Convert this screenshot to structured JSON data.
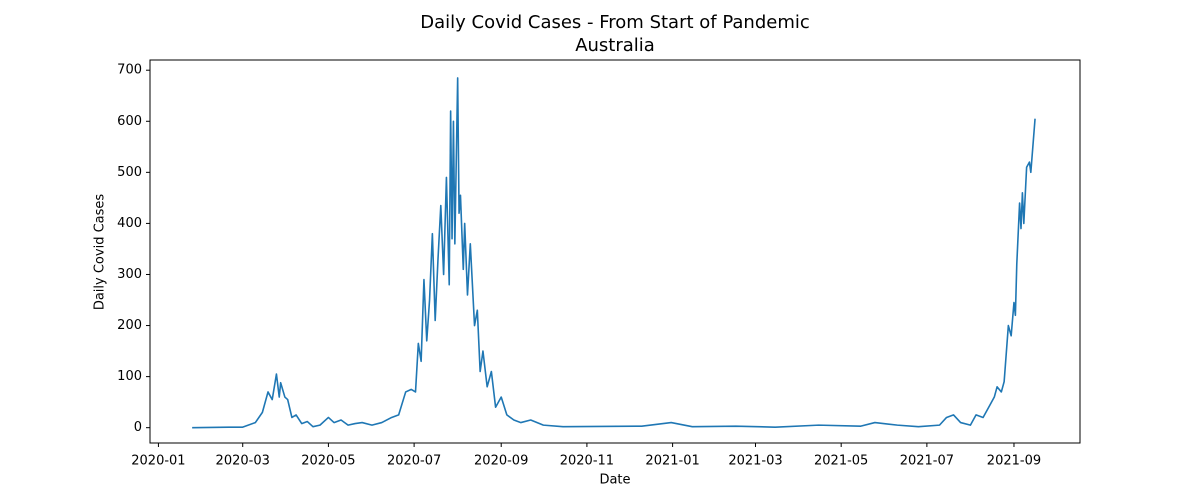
{
  "chart_data": {
    "type": "line",
    "title": "Daily Covid Cases - From Start of Pandemic",
    "subtitle": "Australia",
    "x_label": "Date",
    "y_label": "Daily Covid Cases",
    "grid": false,
    "x": [
      "2020-01-25",
      "2020-02-20",
      "2020-03-01",
      "2020-03-10",
      "2020-03-15",
      "2020-03-19",
      "2020-03-22",
      "2020-03-25",
      "2020-03-27",
      "2020-03-28",
      "2020-03-31",
      "2020-04-02",
      "2020-04-05",
      "2020-04-08",
      "2020-04-12",
      "2020-04-16",
      "2020-04-20",
      "2020-04-25",
      "2020-05-01",
      "2020-05-05",
      "2020-05-10",
      "2020-05-15",
      "2020-05-20",
      "2020-05-25",
      "2020-06-01",
      "2020-06-08",
      "2020-06-15",
      "2020-06-20",
      "2020-06-25",
      "2020-06-29",
      "2020-07-02",
      "2020-07-04",
      "2020-07-06",
      "2020-07-08",
      "2020-07-10",
      "2020-07-12",
      "2020-07-14",
      "2020-07-16",
      "2020-07-18",
      "2020-07-20",
      "2020-07-22",
      "2020-07-24",
      "2020-07-26",
      "2020-07-27",
      "2020-07-28",
      "2020-07-29",
      "2020-07-30",
      "2020-08-01",
      "2020-08-02",
      "2020-08-03",
      "2020-08-05",
      "2020-08-06",
      "2020-08-08",
      "2020-08-10",
      "2020-08-13",
      "2020-08-15",
      "2020-08-17",
      "2020-08-19",
      "2020-08-22",
      "2020-08-25",
      "2020-08-28",
      "2020-09-01",
      "2020-09-05",
      "2020-09-10",
      "2020-09-15",
      "2020-09-22",
      "2020-10-01",
      "2020-10-15",
      "2020-12-10",
      "2020-12-31",
      "2021-01-15",
      "2021-02-15",
      "2021-03-15",
      "2021-04-15",
      "2021-05-15",
      "2021-05-25",
      "2021-06-10",
      "2021-06-25",
      "2021-07-10",
      "2021-07-15",
      "2021-07-20",
      "2021-07-25",
      "2021-08-01",
      "2021-08-05",
      "2021-08-10",
      "2021-08-15",
      "2021-08-18",
      "2021-08-20",
      "2021-08-23",
      "2021-08-25",
      "2021-08-28",
      "2021-08-30",
      "2021-09-01",
      "2021-09-02",
      "2021-09-03",
      "2021-09-05",
      "2021-09-06",
      "2021-09-07",
      "2021-09-08",
      "2021-09-10",
      "2021-09-12",
      "2021-09-13",
      "2021-09-16"
    ],
    "series": [
      {
        "name": "Daily Covid Cases",
        "color": "#1f77b4",
        "values": [
          0,
          1,
          1,
          10,
          30,
          70,
          55,
          105,
          60,
          88,
          60,
          55,
          20,
          25,
          8,
          12,
          2,
          5,
          20,
          10,
          15,
          5,
          8,
          10,
          5,
          10,
          20,
          25,
          70,
          75,
          70,
          165,
          130,
          290,
          170,
          250,
          380,
          210,
          330,
          435,
          300,
          490,
          280,
          620,
          370,
          600,
          360,
          685,
          420,
          455,
          310,
          400,
          260,
          360,
          200,
          230,
          110,
          150,
          80,
          110,
          40,
          60,
          25,
          15,
          10,
          15,
          5,
          2,
          3,
          10,
          2,
          3,
          1,
          5,
          3,
          10,
          5,
          2,
          5,
          20,
          25,
          10,
          5,
          25,
          20,
          45,
          60,
          80,
          70,
          90,
          200,
          180,
          245,
          220,
          320,
          440,
          390,
          460,
          400,
          510,
          520,
          500,
          605
        ]
      }
    ],
    "xlim": [
      "2019-12-26",
      "2021-10-18"
    ],
    "xticks": [
      {
        "value": "2020-01-01",
        "label": "2020-01"
      },
      {
        "value": "2020-03-01",
        "label": "2020-03"
      },
      {
        "value": "2020-05-01",
        "label": "2020-05"
      },
      {
        "value": "2020-07-01",
        "label": "2020-07"
      },
      {
        "value": "2020-09-01",
        "label": "2020-09"
      },
      {
        "value": "2020-11-01",
        "label": "2020-11"
      },
      {
        "value": "2021-01-01",
        "label": "2021-01"
      },
      {
        "value": "2021-03-01",
        "label": "2021-03"
      },
      {
        "value": "2021-05-01",
        "label": "2021-05"
      },
      {
        "value": "2021-07-01",
        "label": "2021-07"
      },
      {
        "value": "2021-09-01",
        "label": "2021-09"
      }
    ],
    "ylim": [
      -30,
      720
    ],
    "yticks": [
      0,
      100,
      200,
      300,
      400,
      500,
      600,
      700
    ]
  }
}
